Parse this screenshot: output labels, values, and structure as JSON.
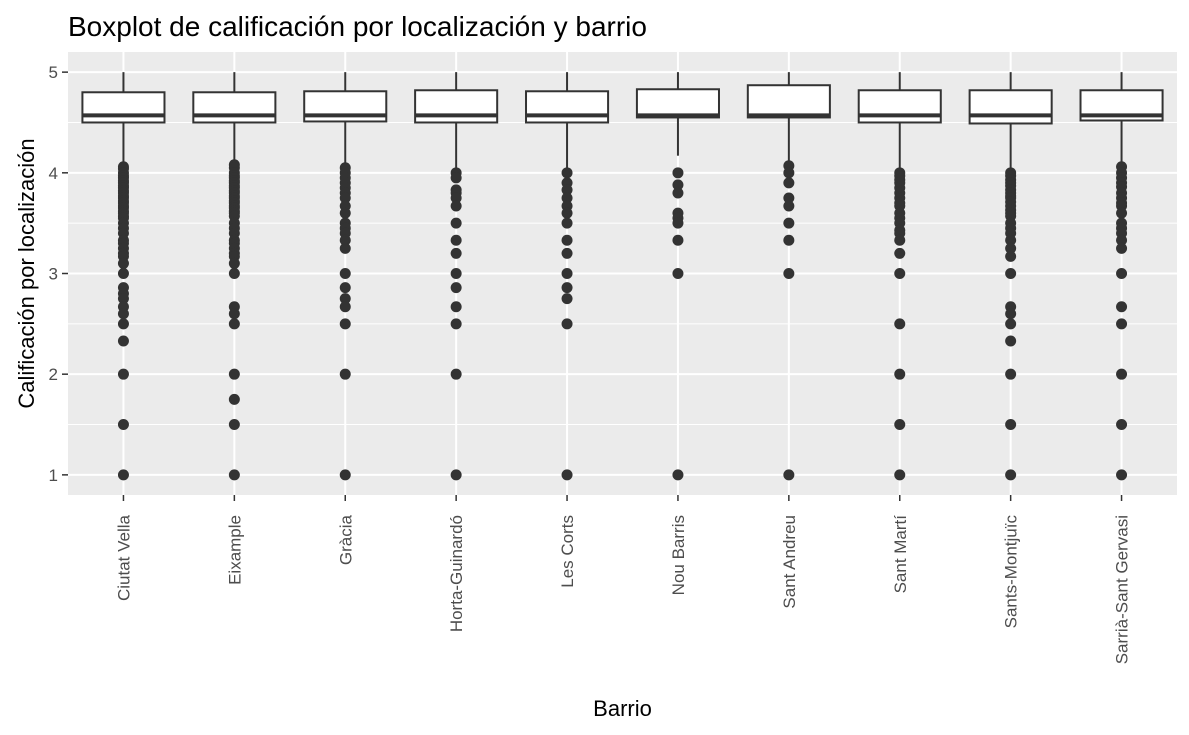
{
  "chart_data": {
    "type": "boxplot",
    "title": "Boxplot de calificación por localización y barrio",
    "xlabel": "Barrio",
    "ylabel": "Calificación por localización",
    "ylim": [
      0.8,
      5.2
    ],
    "yticks": [
      1,
      2,
      3,
      4,
      5
    ],
    "grid": true,
    "categories": [
      "Ciutat Vella",
      "Eixample",
      "Gràcia",
      "Horta-Guinardó",
      "Les Corts",
      "Nou Barris",
      "Sant Andreu",
      "Sant Martí",
      "Sants-Montjuïc",
      "Sarrià-Sant Gervasi"
    ],
    "boxes": [
      {
        "name": "Ciutat Vella",
        "whisker_low": 4.08,
        "q1": 4.5,
        "median": 4.57,
        "q3": 4.8,
        "whisker_high": 5.0,
        "outliers": [
          4.06,
          4.04,
          4.0,
          3.97,
          3.95,
          3.92,
          3.9,
          3.87,
          3.85,
          3.82,
          3.8,
          3.77,
          3.75,
          3.72,
          3.7,
          3.67,
          3.65,
          3.62,
          3.6,
          3.57,
          3.55,
          3.5,
          3.45,
          3.4,
          3.33,
          3.3,
          3.25,
          3.2,
          3.17,
          3.1,
          3.0,
          2.86,
          2.8,
          2.75,
          2.67,
          2.6,
          2.5,
          2.33,
          2.0,
          1.5,
          1.0
        ]
      },
      {
        "name": "Eixample",
        "whisker_low": 4.1,
        "q1": 4.5,
        "median": 4.57,
        "q3": 4.8,
        "whisker_high": 5.0,
        "outliers": [
          4.08,
          4.05,
          4.0,
          3.97,
          3.95,
          3.92,
          3.9,
          3.87,
          3.85,
          3.82,
          3.8,
          3.77,
          3.75,
          3.72,
          3.7,
          3.67,
          3.65,
          3.62,
          3.6,
          3.57,
          3.5,
          3.45,
          3.4,
          3.33,
          3.3,
          3.25,
          3.2,
          3.17,
          3.1,
          3.0,
          2.67,
          2.6,
          2.5,
          2.0,
          1.75,
          1.5,
          1.0
        ]
      },
      {
        "name": "Gràcia",
        "whisker_low": 4.07,
        "q1": 4.51,
        "median": 4.57,
        "q3": 4.81,
        "whisker_high": 5.0,
        "outliers": [
          4.05,
          4.0,
          3.95,
          3.9,
          3.85,
          3.8,
          3.75,
          3.67,
          3.6,
          3.5,
          3.45,
          3.4,
          3.33,
          3.25,
          3.0,
          2.86,
          2.75,
          2.67,
          2.5,
          2.0,
          1.0
        ]
      },
      {
        "name": "Horta-Guinardó",
        "whisker_low": 4.02,
        "q1": 4.5,
        "median": 4.57,
        "q3": 4.82,
        "whisker_high": 5.0,
        "outliers": [
          4.0,
          3.95,
          3.83,
          3.8,
          3.75,
          3.67,
          3.5,
          3.33,
          3.2,
          3.0,
          2.86,
          2.67,
          2.5,
          2.0,
          1.0
        ]
      },
      {
        "name": "Les Corts",
        "whisker_low": 4.02,
        "q1": 4.5,
        "median": 4.57,
        "q3": 4.81,
        "whisker_high": 5.0,
        "outliers": [
          4.0,
          3.9,
          3.83,
          3.75,
          3.67,
          3.6,
          3.5,
          3.33,
          3.2,
          3.0,
          2.86,
          2.75,
          2.5,
          1.0
        ]
      },
      {
        "name": "Nou Barris",
        "whisker_low": 4.17,
        "q1": 4.55,
        "median": 4.57,
        "q3": 4.83,
        "whisker_high": 5.0,
        "outliers": [
          4.0,
          3.88,
          3.8,
          3.6,
          3.55,
          3.5,
          3.33,
          3.0,
          1.0
        ]
      },
      {
        "name": "Sant Andreu",
        "whisker_low": 4.1,
        "q1": 4.55,
        "median": 4.57,
        "q3": 4.87,
        "whisker_high": 5.0,
        "outliers": [
          4.07,
          4.0,
          3.9,
          3.75,
          3.67,
          3.5,
          3.33,
          3.0,
          1.0
        ]
      },
      {
        "name": "Sant Martí",
        "whisker_low": 4.02,
        "q1": 4.5,
        "median": 4.57,
        "q3": 4.82,
        "whisker_high": 5.0,
        "outliers": [
          4.0,
          3.97,
          3.93,
          3.9,
          3.85,
          3.8,
          3.75,
          3.7,
          3.67,
          3.6,
          3.55,
          3.5,
          3.43,
          3.4,
          3.33,
          3.2,
          3.0,
          2.5,
          2.0,
          1.5,
          1.0
        ]
      },
      {
        "name": "Sants-Montjuïc",
        "whisker_low": 4.02,
        "q1": 4.49,
        "median": 4.57,
        "q3": 4.82,
        "whisker_high": 5.0,
        "outliers": [
          4.0,
          3.97,
          3.93,
          3.9,
          3.87,
          3.83,
          3.8,
          3.77,
          3.75,
          3.71,
          3.67,
          3.63,
          3.6,
          3.57,
          3.5,
          3.45,
          3.4,
          3.33,
          3.25,
          3.17,
          3.0,
          2.67,
          2.6,
          2.5,
          2.33,
          2.0,
          1.5,
          1.0
        ]
      },
      {
        "name": "Sarrià-Sant Gervasi",
        "whisker_low": 4.08,
        "q1": 4.52,
        "median": 4.57,
        "q3": 4.82,
        "whisker_high": 5.0,
        "outliers": [
          4.06,
          4.0,
          3.95,
          3.9,
          3.86,
          3.8,
          3.75,
          3.7,
          3.67,
          3.6,
          3.5,
          3.45,
          3.4,
          3.33,
          3.25,
          3.0,
          2.67,
          2.5,
          2.0,
          1.5,
          1.0
        ]
      }
    ]
  }
}
